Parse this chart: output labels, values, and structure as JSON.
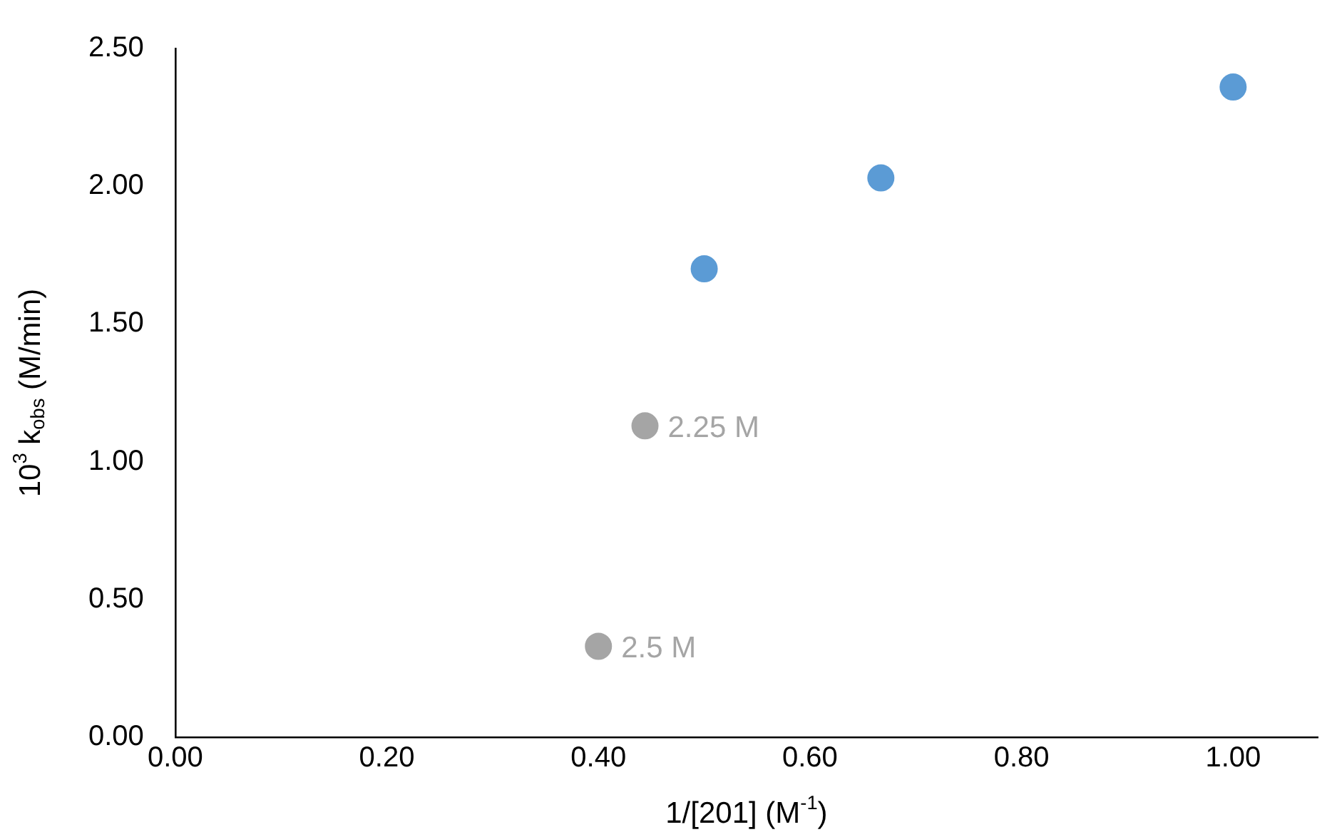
{
  "chart_data": {
    "type": "scatter",
    "xlabel": "1/[201] (M$^{-1}$)",
    "ylabel": "10$^{3}$ k$_{obs}$ (M/min)",
    "series": [
      {
        "color": "#5b9bd5",
        "x": [
          0.5,
          0.667,
          1.0
        ],
        "values": [
          1.7,
          2.03,
          2.36
        ]
      },
      {
        "color": "#a5a5a5",
        "x": [
          0.444,
          0.4
        ],
        "values": [
          1.13,
          0.33
        ]
      }
    ],
    "annotations": [
      {
        "text": "2.25 M",
        "x": 0.444,
        "y": 1.13
      },
      {
        "text": "2.5 M",
        "x": 0.4,
        "y": 0.33
      }
    ],
    "xlim": [
      0,
      1.08
    ],
    "ylim": [
      0,
      2.5
    ],
    "xticks": [
      {
        "value": 0,
        "label": "0.00"
      },
      {
        "value": 0.2,
        "label": "0.20"
      },
      {
        "value": 0.4,
        "label": "0.40"
      },
      {
        "value": 0.6,
        "label": "0.60"
      },
      {
        "value": 0.8,
        "label": "0.80"
      },
      {
        "value": 1,
        "label": "1.00"
      }
    ],
    "yticks": [
      {
        "value": 0,
        "label": "0.00"
      },
      {
        "value": 0.5,
        "label": "0.50"
      },
      {
        "value": 1,
        "label": "1.00"
      },
      {
        "value": 1.5,
        "label": "1.50"
      },
      {
        "value": 2,
        "label": "2.00"
      },
      {
        "value": 2.5,
        "label": "2.50"
      }
    ],
    "grid": false,
    "legend": false,
    "marker": "circle"
  }
}
